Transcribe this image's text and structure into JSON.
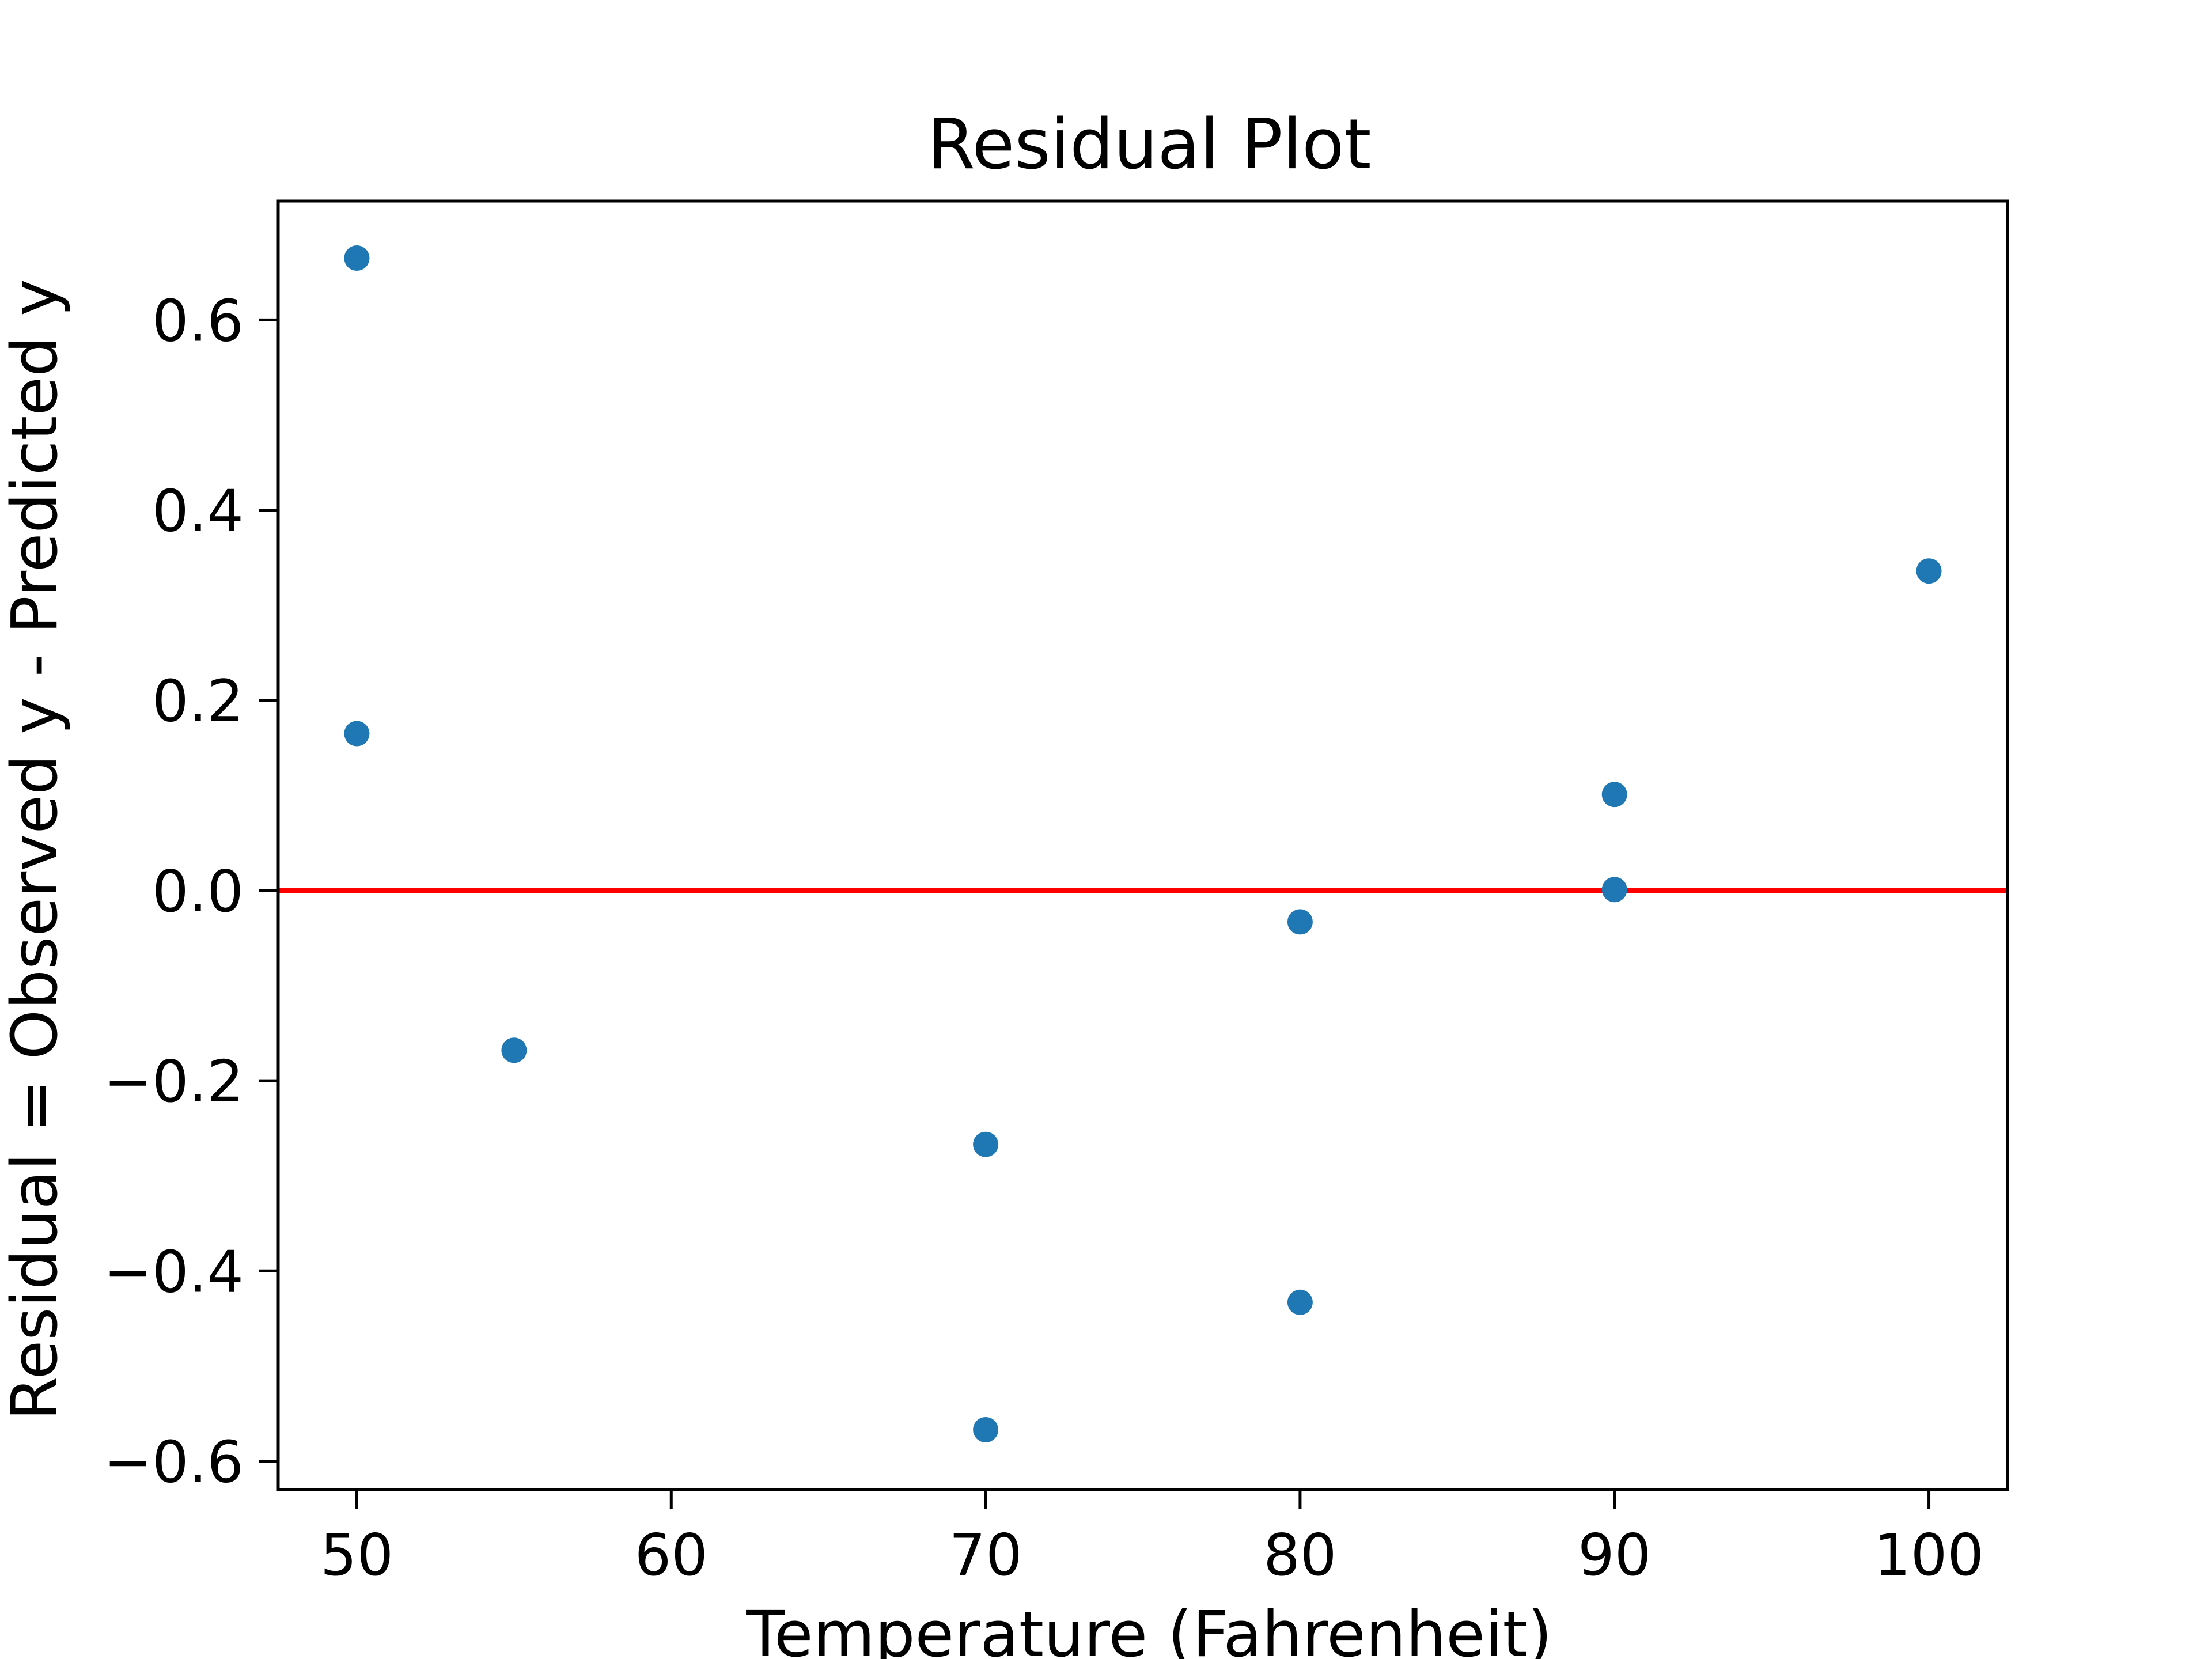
{
  "chart_data": {
    "type": "scatter",
    "title": "Residual Plot",
    "xlabel": "Temperature (Fahrenheit)",
    "ylabel": "Residual = Observed y - Predicted y",
    "xlim": [
      47.5,
      102.5
    ],
    "ylim": [
      -0.63,
      0.725
    ],
    "x_ticks": [
      50,
      60,
      70,
      80,
      90,
      100
    ],
    "x_tick_labels": [
      "50",
      "60",
      "70",
      "80",
      "90",
      "100"
    ],
    "y_ticks": [
      0.6,
      0.4,
      0.2,
      0.0,
      -0.2,
      -0.4,
      -0.6
    ],
    "y_tick_labels": [
      "0.6",
      "0.4",
      "0.2",
      "0.0",
      "−0.2",
      "−0.4",
      "−0.6"
    ],
    "grid": false,
    "series": [
      {
        "color": "#1f77b4",
        "x": [
          50,
          50,
          55,
          70,
          70,
          80,
          80,
          90,
          90,
          100
        ],
        "y": [
          0.665,
          0.165,
          -0.168,
          -0.267,
          -0.567,
          -0.033,
          -0.433,
          0.101,
          0.001,
          0.336
        ]
      }
    ],
    "reference_line": {
      "y": 0.0,
      "color": "#ff0000"
    }
  }
}
